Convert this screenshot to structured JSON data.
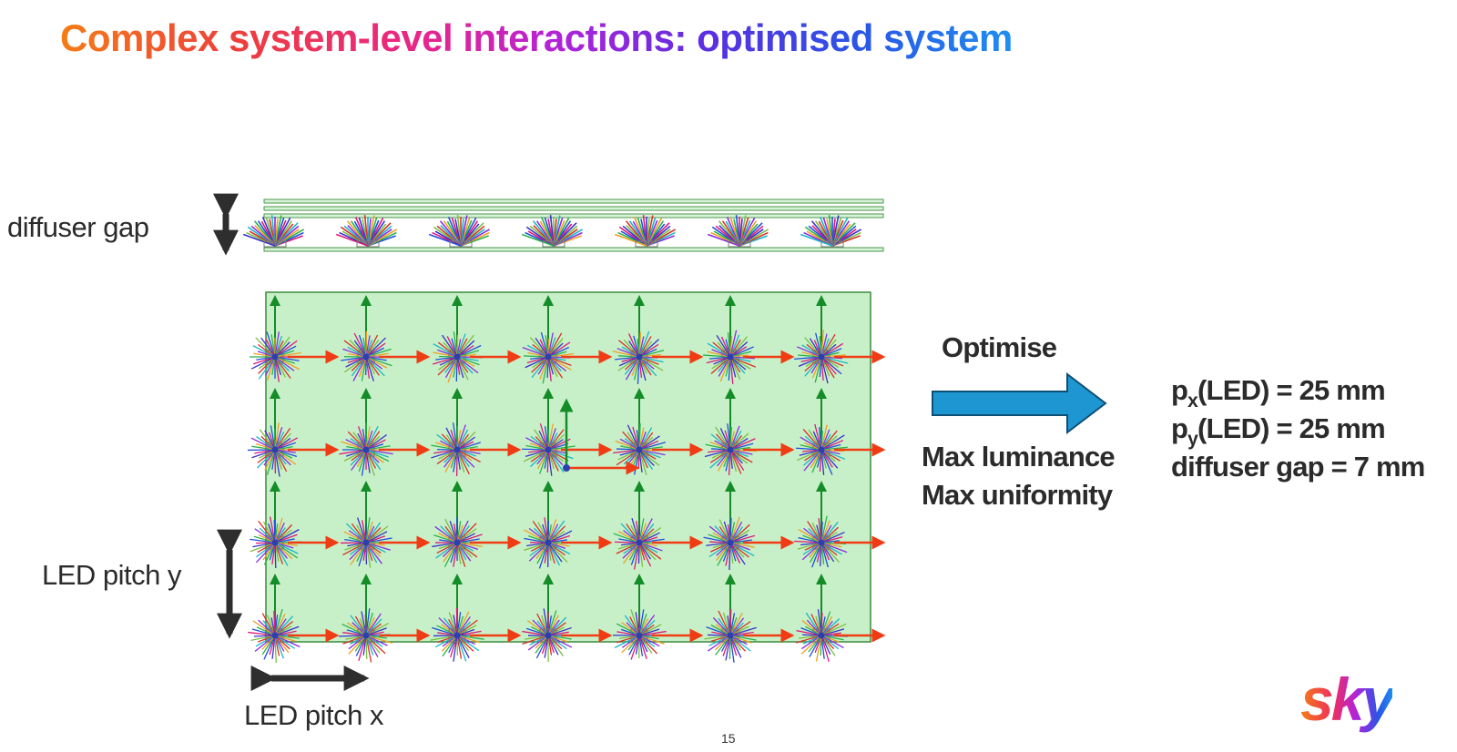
{
  "slide": {
    "title": "Complex system-level interactions: optimised system",
    "page_number": "15",
    "logo_text": "sky"
  },
  "labels": {
    "diffuser_gap": "diffuser gap",
    "led_pitch_y": "LED pitch y",
    "led_pitch_x": "LED pitch x"
  },
  "process": {
    "action": "Optimise",
    "goals": [
      "Max luminance",
      "Max uniformity"
    ]
  },
  "results": [
    {
      "symbol": "p",
      "subscript": "x",
      "text": "(LED) = 25 mm"
    },
    {
      "symbol": "p",
      "subscript": "y",
      "text": "(LED) = 25 mm"
    },
    {
      "symbol": "",
      "subscript": "",
      "text": "diffuser gap = 7 mm"
    }
  ],
  "colors": {
    "panel_fill": "#c8f0c8",
    "panel_border": "#3c8a3c",
    "arrow_fill": "#1e96d2",
    "x_axis_arrow": "#f03c14",
    "y_axis_arrow": "#148c28"
  }
}
